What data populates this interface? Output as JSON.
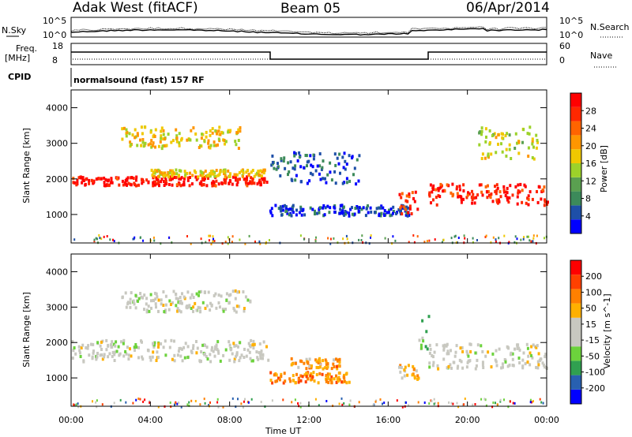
{
  "header": {
    "station": "Adak West (fitACF)",
    "beam": "Beam 05",
    "date": "06/Apr/2014"
  },
  "top_panels": {
    "nsky_label": "N.Sky",
    "nsky_ticks": [
      "10^5",
      "10^0"
    ],
    "nsearch_label": "N.Search",
    "nsearch_ticks": [
      "10^5",
      "10^0"
    ],
    "freq_label_1": "Freq.",
    "freq_label_2": "[MHz]",
    "freq_ticks": [
      "18",
      "8"
    ],
    "nave_label": "Nave",
    "nave_ticks": [
      "60",
      "0"
    ],
    "cpid_label": "CPID",
    "cpid_text": "normalsound (fast) 157 RF"
  },
  "colors": {
    "power": [
      "#0000ff",
      "#1e4fa8",
      "#3c8a5a",
      "#5aa050",
      "#9cd22a",
      "#f0c800",
      "#ff9600",
      "#ff6400",
      "#ff2800",
      "#ff0000"
    ],
    "velocity": [
      "#0000ff",
      "#2860b0",
      "#30a050",
      "#6cd23c",
      "#c8c8c0",
      "#c8c8c0",
      "#ffb000",
      "#ff8000",
      "#ff4000",
      "#ff0000"
    ]
  },
  "chart_data": [
    {
      "type": "heatmap",
      "name": "power-panel",
      "ylabel": "Slant Range [km]",
      "y_ticks": [
        "4000",
        "3000",
        "2000",
        "1000"
      ],
      "ylim": [
        200,
        4500
      ],
      "colorbar_label": "Power [dB]",
      "colorbar_ticks": [
        "28",
        "24",
        "20",
        "16",
        "12",
        "8",
        "4"
      ],
      "colorbar_range": [
        0,
        32
      ],
      "bands": [
        {
          "t0": 0.0,
          "t1": 9.9,
          "r0": 1850,
          "r1": 2100,
          "level": 0.92
        },
        {
          "t0": 4.0,
          "t1": 9.9,
          "r0": 2100,
          "r1": 2300,
          "level": 0.55
        },
        {
          "t0": 2.5,
          "t1": 8.5,
          "r0": 2900,
          "r1": 3500,
          "level": 0.55
        },
        {
          "t0": 10.0,
          "t1": 14.5,
          "r0": 1900,
          "r1": 2800,
          "level": 0.15
        },
        {
          "t0": 10.0,
          "t1": 17.0,
          "r0": 1000,
          "r1": 1300,
          "level": 0.12
        },
        {
          "t0": 16.5,
          "t1": 17.5,
          "r0": 1000,
          "r1": 1700,
          "level": 0.82
        },
        {
          "t0": 18.0,
          "t1": 24.0,
          "r0": 1300,
          "r1": 1900,
          "level": 0.88
        },
        {
          "t0": 20.5,
          "t1": 23.5,
          "r0": 2600,
          "r1": 3500,
          "level": 0.5
        }
      ]
    },
    {
      "type": "heatmap",
      "name": "velocity-panel",
      "ylabel": "Slant Range [km]",
      "y_ticks": [
        "4000",
        "3000",
        "2000",
        "1000"
      ],
      "ylim": [
        200,
        4500
      ],
      "colorbar_label": "Velocity [m s^-1]",
      "colorbar_ticks": [
        "200",
        "100",
        "50",
        "15",
        "-15",
        "-50",
        "-100",
        "-200"
      ],
      "colorbar_range": [
        -250,
        250
      ],
      "x_ticks": [
        "00:00",
        "04:00",
        "08:00",
        "12:00",
        "16:00",
        "20:00",
        "00:00"
      ],
      "xlabel": "Time UT",
      "xlim": [
        0,
        24
      ],
      "bands": [
        {
          "t0": 0.0,
          "t1": 9.9,
          "r0": 1500,
          "r1": 2100,
          "level": 0.5
        },
        {
          "t0": 2.5,
          "t1": 9.0,
          "r0": 2900,
          "r1": 3500,
          "level": 0.5
        },
        {
          "t0": 10.0,
          "t1": 14.0,
          "r0": 900,
          "r1": 1200,
          "level": 0.72
        },
        {
          "t0": 11.0,
          "t1": 13.5,
          "r0": 1300,
          "r1": 1600,
          "level": 0.7
        },
        {
          "t0": 16.5,
          "t1": 17.5,
          "r0": 1000,
          "r1": 1400,
          "level": 0.65
        },
        {
          "t0": 18.0,
          "t1": 24.0,
          "r0": 1300,
          "r1": 2000,
          "level": 0.5
        },
        {
          "t0": 17.5,
          "t1": 18.0,
          "r0": 1800,
          "r1": 2800,
          "level": 0.35
        }
      ]
    }
  ]
}
